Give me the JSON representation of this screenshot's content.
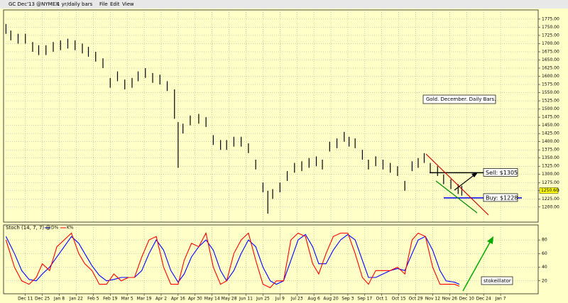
{
  "toolbar": {
    "symbol": "GC Dec'13 @NYMEX",
    "period": "1 yr/daily bars",
    "menus": [
      "File",
      "Edit",
      "View"
    ]
  },
  "chart_data": [
    {
      "type": "hlbar",
      "title": "Gold. December. Daily Bars.",
      "color": "#000000",
      "x": [
        0,
        4,
        10,
        16,
        22,
        27,
        33,
        39,
        45,
        51,
        57,
        63,
        68,
        74,
        80,
        86,
        92,
        98,
        104,
        109,
        115,
        121,
        127,
        133,
        139,
        142,
        146,
        152,
        159,
        165,
        171,
        177,
        182,
        188,
        194,
        200,
        206,
        212,
        216,
        220,
        226,
        232,
        238,
        244,
        250,
        256,
        261,
        267,
        273,
        279,
        283,
        288,
        294,
        299,
        305,
        311,
        317,
        323,
        329,
        335,
        340,
        345,
        350,
        356,
        361,
        367,
        373,
        376
      ],
      "high": [
        1760,
        1740,
        1730,
        1730,
        1705,
        1695,
        1695,
        1705,
        1710,
        1715,
        1710,
        1700,
        1690,
        1675,
        1655,
        1595,
        1615,
        1590,
        1595,
        1615,
        1625,
        1610,
        1605,
        1585,
        1560,
        1460,
        1455,
        1480,
        1485,
        1475,
        1420,
        1405,
        1405,
        1415,
        1415,
        1395,
        1345,
        1275,
        1250,
        1255,
        1275,
        1310,
        1335,
        1340,
        1350,
        1355,
        1345,
        1400,
        1410,
        1430,
        1415,
        1410,
        1375,
        1345,
        1355,
        1345,
        1335,
        1325,
        1280,
        1340,
        1350,
        1365,
        1335,
        1325,
        1300,
        1285,
        1270,
        1265
      ],
      "low": [
        1730,
        1710,
        1700,
        1700,
        1675,
        1665,
        1665,
        1675,
        1680,
        1685,
        1680,
        1670,
        1660,
        1645,
        1625,
        1565,
        1585,
        1560,
        1565,
        1585,
        1595,
        1580,
        1575,
        1555,
        1470,
        1320,
        1425,
        1450,
        1455,
        1445,
        1390,
        1375,
        1375,
        1385,
        1385,
        1365,
        1315,
        1245,
        1180,
        1225,
        1245,
        1280,
        1305,
        1310,
        1320,
        1325,
        1315,
        1370,
        1380,
        1400,
        1385,
        1380,
        1345,
        1315,
        1325,
        1315,
        1305,
        1295,
        1250,
        1310,
        1320,
        1335,
        1305,
        1295,
        1270,
        1255,
        1240,
        1235
      ],
      "xlim": [
        -2,
        439
      ],
      "ylim": [
        1154,
        1803
      ],
      "yticks": [
        {
          "value": 1200,
          "label": "1200.00"
        },
        {
          "value": 1225,
          "label": "1225.00"
        },
        {
          "value": 1250,
          "label": "1250.00"
        },
        {
          "value": 1275,
          "label": "1275.00"
        },
        {
          "value": 1300,
          "label": "1300.00"
        },
        {
          "value": 1325,
          "label": "1325.00"
        },
        {
          "value": 1350,
          "label": "1350.00"
        },
        {
          "value": 1375,
          "label": "1375.00"
        },
        {
          "value": 1400,
          "label": "1400.00"
        },
        {
          "value": 1425,
          "label": "1425.00"
        },
        {
          "value": 1450,
          "label": "1450.00"
        },
        {
          "value": 1475,
          "label": "1475.00"
        },
        {
          "value": 1500,
          "label": "1500.00"
        },
        {
          "value": 1525,
          "label": "1525.00"
        },
        {
          "value": 1550,
          "label": "1550.00"
        },
        {
          "value": 1575,
          "label": "1575.00"
        },
        {
          "value": 1600,
          "label": "1600.00"
        },
        {
          "value": 1625,
          "label": "1625.00"
        },
        {
          "value": 1650,
          "label": "1650.00"
        },
        {
          "value": 1675,
          "label": "1675.00"
        },
        {
          "value": 1700,
          "label": "1700.00"
        },
        {
          "value": 1725,
          "label": "1725.00"
        },
        {
          "value": 1750,
          "label": "1750.00"
        },
        {
          "value": 1775,
          "label": "1775.00"
        }
      ],
      "last_price": {
        "value": 1250.6,
        "label": "1250.60"
      },
      "levels": [
        {
          "label": "Sell: $1305",
          "value": 1305,
          "color": "#000000"
        },
        {
          "label": "Buy: $1228",
          "value": 1228,
          "color": "#0000ff"
        }
      ],
      "grid": true
    },
    {
      "type": "line",
      "title": "Stoch (14, 7, 7) @",
      "annotation": "stokeillator",
      "x": [
        0,
        7,
        13,
        19,
        25,
        30,
        36,
        42,
        48,
        54,
        60,
        65,
        71,
        77,
        83,
        89,
        95,
        101,
        106,
        112,
        118,
        124,
        130,
        136,
        142,
        147,
        153,
        159,
        165,
        171,
        177,
        182,
        188,
        194,
        200,
        206,
        212,
        218,
        223,
        229,
        235,
        241,
        247,
        253,
        258,
        264,
        270,
        276,
        282,
        288,
        294,
        299,
        305,
        311,
        317,
        323,
        329,
        335,
        340,
        346,
        352,
        358,
        363,
        370,
        374
      ],
      "series": [
        {
          "name": "D%",
          "color": "#0000ff",
          "values": [
            85,
            60,
            35,
            22,
            20,
            30,
            40,
            55,
            70,
            85,
            75,
            60,
            42,
            28,
            20,
            22,
            25,
            25,
            25,
            35,
            60,
            80,
            65,
            35,
            18,
            30,
            55,
            70,
            80,
            65,
            35,
            20,
            35,
            60,
            80,
            70,
            40,
            20,
            15,
            20,
            50,
            80,
            88,
            70,
            45,
            45,
            65,
            80,
            88,
            80,
            50,
            25,
            25,
            30,
            35,
            38,
            35,
            60,
            80,
            85,
            65,
            35,
            20,
            18,
            15
          ]
        },
        {
          "name": "K%",
          "color": "#ff0000",
          "values": [
            80,
            40,
            20,
            15,
            25,
            45,
            35,
            70,
            80,
            90,
            60,
            45,
            35,
            15,
            15,
            30,
            20,
            25,
            25,
            55,
            80,
            85,
            40,
            15,
            15,
            50,
            75,
            70,
            90,
            40,
            15,
            20,
            60,
            80,
            90,
            50,
            15,
            10,
            20,
            20,
            80,
            90,
            85,
            45,
            30,
            60,
            85,
            90,
            90,
            60,
            25,
            15,
            35,
            35,
            35,
            40,
            30,
            80,
            90,
            85,
            40,
            15,
            15,
            15,
            12
          ]
        }
      ],
      "xlim": [
        -2,
        439
      ],
      "ylim": [
        1,
        102
      ],
      "xticks": [
        {
          "value": 16,
          "label": "Dec 11"
        },
        {
          "value": 30,
          "label": "Dec 25"
        },
        {
          "value": 44,
          "label": "Jan 8"
        },
        {
          "value": 58,
          "label": "Jan 22"
        },
        {
          "value": 72,
          "label": "Feb 5"
        },
        {
          "value": 86,
          "label": "Feb 19"
        },
        {
          "value": 100,
          "label": "Mar 5"
        },
        {
          "value": 114,
          "label": "Mar 19"
        },
        {
          "value": 128,
          "label": "Apr 2"
        },
        {
          "value": 142,
          "label": "Apr 16"
        },
        {
          "value": 156,
          "label": "Apr 30"
        },
        {
          "value": 170,
          "label": "May 14"
        },
        {
          "value": 184,
          "label": "May 28"
        },
        {
          "value": 198,
          "label": "Jun 11"
        },
        {
          "value": 212,
          "label": "Jun 25"
        },
        {
          "value": 226,
          "label": "Jul 9"
        },
        {
          "value": 240,
          "label": "Jul 23"
        },
        {
          "value": 254,
          "label": "Aug 6"
        },
        {
          "value": 268,
          "label": "Aug 20"
        },
        {
          "value": 282,
          "label": "Sep 3"
        },
        {
          "value": 296,
          "label": "Sep 17"
        },
        {
          "value": 310,
          "label": "Oct 1"
        },
        {
          "value": 324,
          "label": "Oct 15"
        },
        {
          "value": 338,
          "label": "Oct 29"
        },
        {
          "value": 352,
          "label": "Nov 12"
        },
        {
          "value": 366,
          "label": "Nov 26"
        },
        {
          "value": 380,
          "label": "Dec 10"
        },
        {
          "value": 394,
          "label": "Dec 24"
        },
        {
          "value": 408,
          "label": "Jan 7"
        }
      ],
      "yticks": [
        20,
        40,
        60,
        80
      ],
      "grid": true
    }
  ]
}
